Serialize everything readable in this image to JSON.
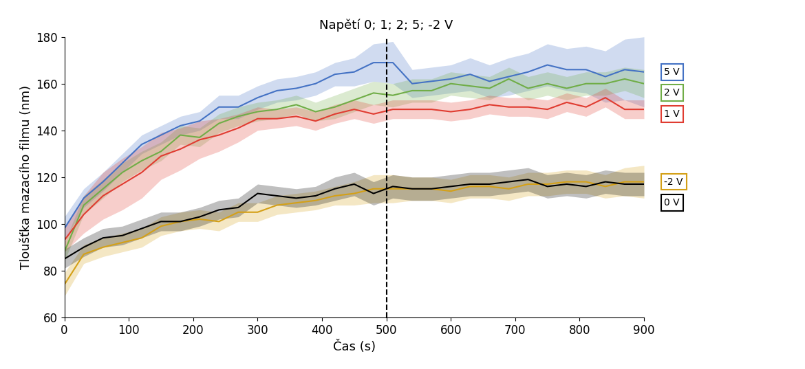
{
  "chart_data": {
    "type": "line",
    "annotation": {
      "text": "Napětí 0; 1; 2; 5; -2 V",
      "x": 500
    },
    "x_label": "Čas (s)",
    "y_label": "Tloušťka mazacího filmu (nm)",
    "x": [
      0,
      30,
      60,
      90,
      120,
      150,
      180,
      210,
      240,
      270,
      300,
      330,
      360,
      390,
      420,
      450,
      480,
      510,
      540,
      570,
      600,
      630,
      660,
      690,
      720,
      750,
      780,
      810,
      840,
      870,
      900
    ],
    "series": [
      {
        "name": "5 V",
        "color": "#4472c4",
        "values": [
          98,
          111,
          118,
          126,
          134,
          138,
          142,
          144,
          150,
          150,
          154,
          157,
          158,
          160,
          164,
          165,
          169,
          169,
          160,
          161,
          162,
          164,
          161,
          163,
          165,
          168,
          166,
          166,
          163,
          166,
          165
        ],
        "error": [
          5,
          4,
          4,
          4,
          4,
          4,
          4,
          4,
          5,
          5,
          5,
          5,
          5,
          5,
          5,
          6,
          8,
          9,
          6,
          6,
          6,
          7,
          7,
          8,
          8,
          9,
          9,
          10,
          11,
          13,
          15
        ]
      },
      {
        "name": "2 V",
        "color": "#70ad47",
        "values": [
          88,
          108,
          115,
          122,
          127,
          131,
          138,
          137,
          143,
          146,
          148,
          149,
          151,
          148,
          150,
          153,
          156,
          155,
          157,
          157,
          160,
          159,
          158,
          162,
          158,
          160,
          158,
          160,
          160,
          162,
          160
        ],
        "error": [
          4,
          4,
          4,
          4,
          4,
          4,
          4,
          4,
          4,
          4,
          4,
          4,
          4,
          4,
          5,
          5,
          5,
          5,
          5,
          5,
          5,
          5,
          5,
          5,
          5,
          5,
          5,
          5,
          5,
          5,
          6
        ]
      },
      {
        "name": "1 V",
        "color": "#e03c31",
        "values": [
          93,
          104,
          112,
          117,
          122,
          129,
          132,
          136,
          138,
          141,
          145,
          145,
          146,
          144,
          147,
          149,
          147,
          149,
          149,
          149,
          148,
          149,
          151,
          150,
          150,
          149,
          152,
          150,
          154,
          149,
          149
        ],
        "error": [
          5,
          8,
          10,
          11,
          11,
          10,
          9,
          8,
          7,
          6,
          5,
          4,
          4,
          4,
          4,
          4,
          4,
          4,
          4,
          4,
          4,
          4,
          4,
          4,
          4,
          4,
          4,
          4,
          4,
          4,
          4
        ]
      },
      {
        "name": "-2 V",
        "color": "#d4a017",
        "values": [
          74,
          87,
          90,
          92,
          94,
          99,
          101,
          102,
          101,
          105,
          105,
          108,
          109,
          110,
          112,
          113,
          115,
          115,
          115,
          115,
          114,
          116,
          116,
          115,
          117,
          117,
          118,
          118,
          116,
          118,
          118
        ],
        "error": [
          5,
          4,
          4,
          4,
          4,
          4,
          4,
          4,
          4,
          4,
          4,
          4,
          4,
          4,
          4,
          5,
          6,
          6,
          5,
          5,
          5,
          5,
          5,
          5,
          5,
          5,
          5,
          5,
          5,
          6,
          7
        ]
      },
      {
        "name": "0 V",
        "color": "#000000",
        "values": [
          85,
          90,
          94,
          95,
          98,
          101,
          101,
          103,
          106,
          107,
          113,
          112,
          111,
          112,
          115,
          117,
          113,
          116,
          115,
          115,
          116,
          117,
          117,
          118,
          119,
          116,
          117,
          116,
          118,
          117,
          117
        ],
        "error": [
          4,
          4,
          4,
          4,
          4,
          4,
          4,
          4,
          4,
          4,
          4,
          4,
          4,
          4,
          5,
          5,
          5,
          5,
          5,
          5,
          5,
          5,
          5,
          5,
          5,
          5,
          5,
          5,
          5,
          5,
          5
        ]
      }
    ],
    "xlim": [
      0,
      900
    ],
    "xticks": [
      0,
      100,
      200,
      300,
      400,
      500,
      600,
      700,
      800,
      900
    ],
    "ylim": [
      60,
      180
    ],
    "yticks": [
      60,
      80,
      100,
      120,
      140,
      160,
      180
    ],
    "grid": false
  }
}
